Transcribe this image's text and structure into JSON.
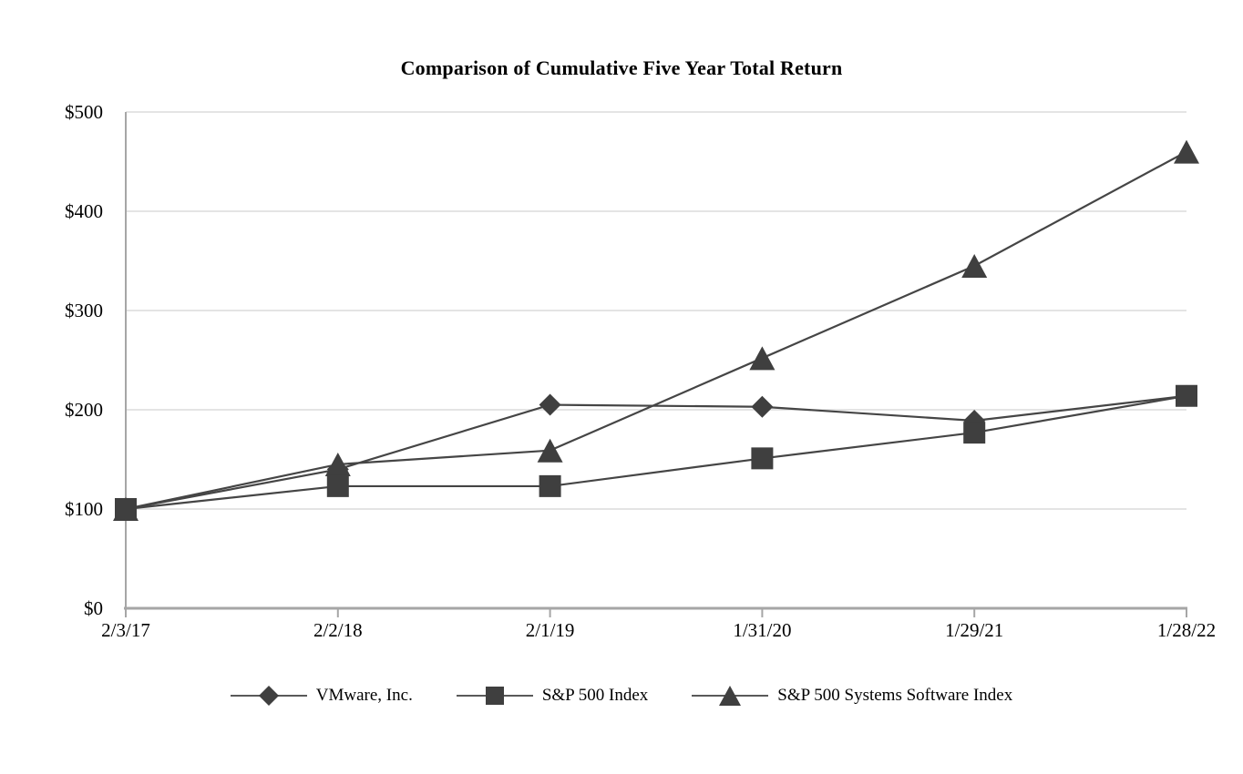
{
  "page": {
    "background": "#ffffff"
  },
  "chart_data": {
    "type": "line",
    "title": "Comparison of Cumulative Five Year Total Return",
    "categories": [
      "2/3/17",
      "2/2/18",
      "2/1/19",
      "1/31/20",
      "1/29/21",
      "1/28/22"
    ],
    "series": [
      {
        "name": "VMware, Inc.",
        "marker": "diamond",
        "values": [
          100,
          140,
          205,
          203,
          189,
          214
        ]
      },
      {
        "name": "S&P 500 Index",
        "marker": "square",
        "values": [
          100,
          123,
          123,
          151,
          177,
          214
        ]
      },
      {
        "name": "S&P 500 Systems Software Index",
        "marker": "triangle",
        "values": [
          100,
          145,
          159,
          252,
          345,
          460
        ]
      }
    ],
    "y_axis": {
      "min": 0,
      "max": 500,
      "tick_values": [
        0,
        100,
        200,
        300,
        400,
        500
      ],
      "tick_labels": [
        "$0",
        "$100",
        "$200",
        "$300",
        "$400",
        "$500"
      ]
    },
    "xlabel": "",
    "ylabel": "",
    "grid": "horizontal",
    "legend_position": "bottom",
    "draw_order": [
      0,
      2,
      1
    ],
    "colors": {
      "text": "#000000",
      "series_line": "#454545",
      "marker_fill": "#3f3f3f",
      "axis": "#a6a6a6",
      "gridline": "#dcdcdc",
      "legend_line": "#595959"
    }
  }
}
